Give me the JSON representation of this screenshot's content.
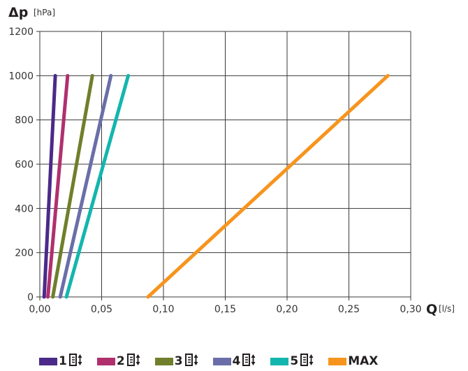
{
  "chart_data": {
    "type": "line",
    "ylabel": "Δp",
    "yunit": "[hPa]",
    "xlabel": "Q",
    "xunit": "[l/s]",
    "xlim": [
      0,
      0.3
    ],
    "ylim": [
      0,
      1200
    ],
    "xticks": [
      "0,00",
      "0,05",
      "0,10",
      "0,15",
      "0,20",
      "0,25",
      "0,30"
    ],
    "yticks": [
      "0",
      "200",
      "400",
      "600",
      "800",
      "1000",
      "1200"
    ],
    "xtick_values": [
      0,
      0.05,
      0.1,
      0.15,
      0.2,
      0.25,
      0.3
    ],
    "ytick_values": [
      0,
      200,
      400,
      600,
      800,
      1000,
      1200
    ],
    "grid": true,
    "legend_position": "bottom",
    "series": [
      {
        "name": "1",
        "icon": "stepper-icon",
        "color": "#4b2a8a",
        "x": [
          0.0035,
          0.0125
        ],
        "y": [
          0,
          1000
        ]
      },
      {
        "name": "2",
        "icon": "stepper-icon",
        "color": "#b0306e",
        "x": [
          0.0065,
          0.0225
        ],
        "y": [
          0,
          1000
        ]
      },
      {
        "name": "3",
        "icon": "stepper-icon",
        "color": "#6f7f2b",
        "x": [
          0.0105,
          0.0425
        ],
        "y": [
          0,
          1000
        ]
      },
      {
        "name": "4",
        "icon": "stepper-icon",
        "color": "#6a6ea8",
        "x": [
          0.0165,
          0.0575
        ],
        "y": [
          0,
          1000
        ]
      },
      {
        "name": "5",
        "icon": "stepper-icon",
        "color": "#13b6ae",
        "x": [
          0.0215,
          0.0715
        ],
        "y": [
          0,
          1000
        ]
      },
      {
        "name": "MAX",
        "color": "#f7941d",
        "x": [
          0.0875,
          0.2815
        ],
        "y": [
          0,
          1000
        ]
      }
    ]
  }
}
